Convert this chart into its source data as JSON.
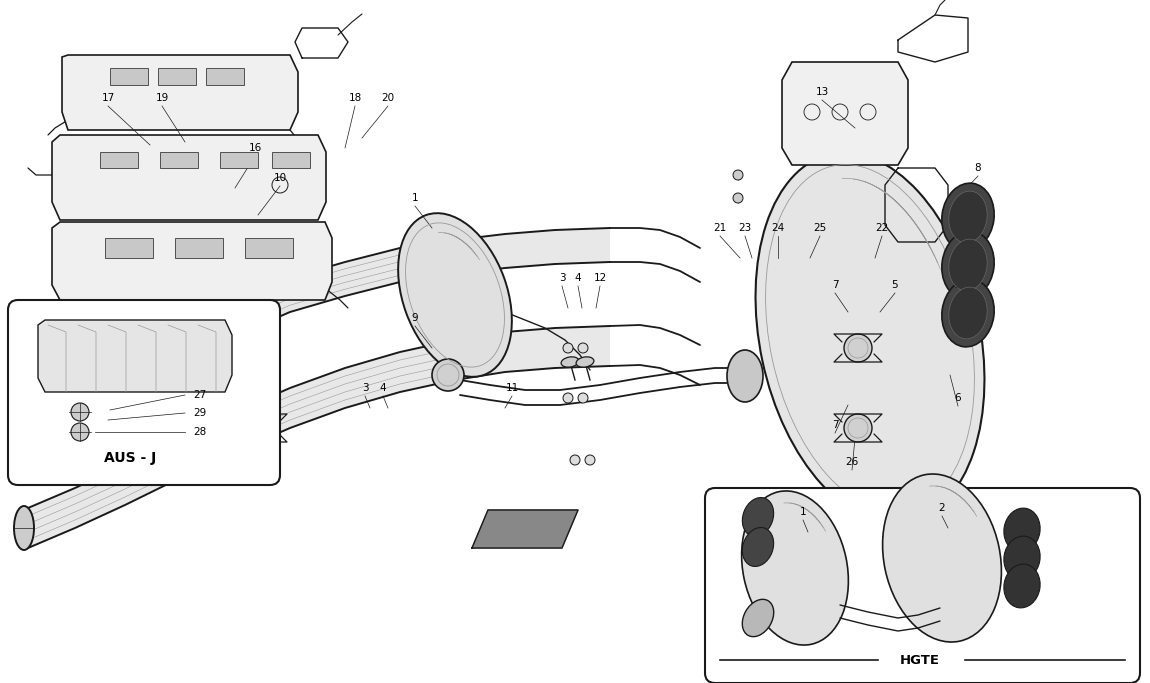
{
  "bg_color": "#ffffff",
  "line_color": "#1a1a1a",
  "gray_color": "#999999",
  "light_gray": "#cccccc",
  "dark_gray": "#555555",
  "pipe_fill": "#e8e8e8",
  "shield_fill": "#f0f0f0",
  "white": "#ffffff"
}
